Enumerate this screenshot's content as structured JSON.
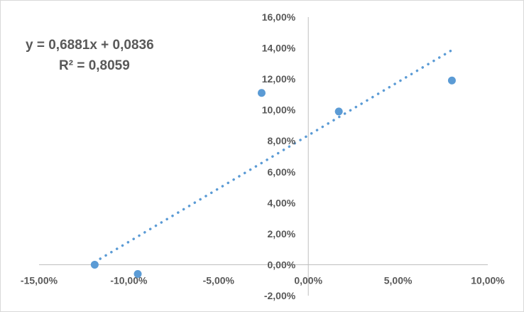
{
  "chart_data": {
    "type": "scatter",
    "title": "",
    "xlabel": "",
    "ylabel": "",
    "xlim": [
      -0.15,
      0.1
    ],
    "ylim": [
      -0.02,
      0.16
    ],
    "x_ticks": [
      -0.15,
      -0.1,
      -0.05,
      0.0,
      0.05,
      0.1
    ],
    "y_ticks": [
      -0.02,
      0.0,
      0.02,
      0.04,
      0.06,
      0.08,
      0.1,
      0.12,
      0.14,
      0.16
    ],
    "x_tick_labels": [
      "-15,00%",
      "-10,00%",
      "-5,00%",
      "0,00%",
      "5,00%",
      "10,00%"
    ],
    "y_tick_labels": [
      "-2,00%",
      "0,00%",
      "2,00%",
      "4,00%",
      "6,00%",
      "8,00%",
      "10,00%",
      "12,00%",
      "14,00%",
      "16,00%"
    ],
    "grid": false,
    "legend": "none",
    "series": [
      {
        "color": "#5b9bd5",
        "points": [
          {
            "x": -0.119,
            "y": 0.0
          },
          {
            "x": -0.095,
            "y": -0.006
          },
          {
            "x": -0.026,
            "y": 0.111
          },
          {
            "x": 0.017,
            "y": 0.099
          },
          {
            "x": 0.08,
            "y": 0.119
          }
        ]
      }
    ],
    "trendline": {
      "type": "linear",
      "style": "dotted",
      "color": "#5b9bd5",
      "slope": 0.6881,
      "intercept": 0.0836,
      "x_range": [
        -0.119,
        0.08
      ],
      "equation_label": "y = 0,6881x + 0,0836",
      "r2_label": "R² = 0,8059"
    }
  }
}
